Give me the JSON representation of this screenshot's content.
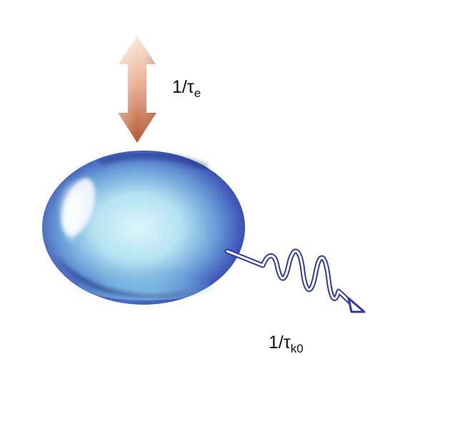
{
  "labels": {
    "coupling": {
      "prefix": "1/τ",
      "subscript": "e"
    },
    "loss": {
      "prefix": "1/τ",
      "subscript": "k0"
    }
  },
  "colors": {
    "arrow_light": "#f6dccb",
    "arrow_mid": "#e9a988",
    "arrow_dark": "#b55a36",
    "ellipsoid_core": "#d8f2fa",
    "ellipsoid_mid": "#5a97d2",
    "ellipsoid_edge": "#1d2b8c",
    "wave_stroke": "#2f3aa6",
    "wave_fill": "#ffffff"
  },
  "icons": {
    "arrow": "double-headed-vertical-arrow",
    "resonator": "glossy-blue-ellipsoid",
    "photon": "wavy-photon-arrow"
  }
}
